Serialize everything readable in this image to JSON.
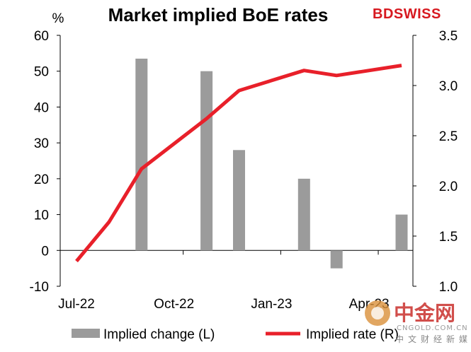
{
  "brand": {
    "name": "BDSWISS",
    "accent": "#d71920"
  },
  "watermark": {
    "main": "中金网",
    "url": "CNGOLD.COM.CN",
    "sub": "中文财经新媒体",
    "color": "#c9302c"
  },
  "chart_data": {
    "type": "bar+line",
    "title": "Market implied BoE rates",
    "left_axis_unit": "%",
    "x_tick_labels": [
      "Jul-22",
      "Oct-22",
      "Jan-23",
      "Apr-23"
    ],
    "left_axis": {
      "range": [
        -10,
        60
      ],
      "ticks": [
        "-10",
        "0",
        "10",
        "20",
        "30",
        "40",
        "50",
        "60"
      ]
    },
    "right_axis": {
      "range": [
        1.0,
        3.5
      ],
      "ticks": [
        "1.0",
        "1.5",
        "2.0",
        "2.5",
        "3.0",
        "3.5"
      ]
    },
    "series": [
      {
        "name": "Implied change (L)",
        "kind": "bar",
        "axis": "left",
        "color": "#9b9b9b",
        "points": [
          {
            "x": "Sep-22",
            "y": 53.5
          },
          {
            "x": "Nov-22",
            "y": 50
          },
          {
            "x": "Dec-22",
            "y": 28
          },
          {
            "x": "Feb-23",
            "y": 20
          },
          {
            "x": "Mar-23",
            "y": -5
          },
          {
            "x": "May-23",
            "y": 10
          }
        ]
      },
      {
        "name": "Implied rate (R)",
        "kind": "line",
        "axis": "right",
        "color": "#e8202a",
        "points": [
          {
            "x": "Jul-22",
            "y": 1.25
          },
          {
            "x": "Aug-22",
            "y": 1.64
          },
          {
            "x": "Sep-22",
            "y": 2.17
          },
          {
            "x": "Nov-22",
            "y": 2.67
          },
          {
            "x": "Dec-22",
            "y": 2.95
          },
          {
            "x": "Feb-23",
            "y": 3.15
          },
          {
            "x": "Mar-23",
            "y": 3.1
          },
          {
            "x": "May-23",
            "y": 3.2
          }
        ]
      }
    ],
    "legend": {
      "placement": "bottom"
    }
  }
}
